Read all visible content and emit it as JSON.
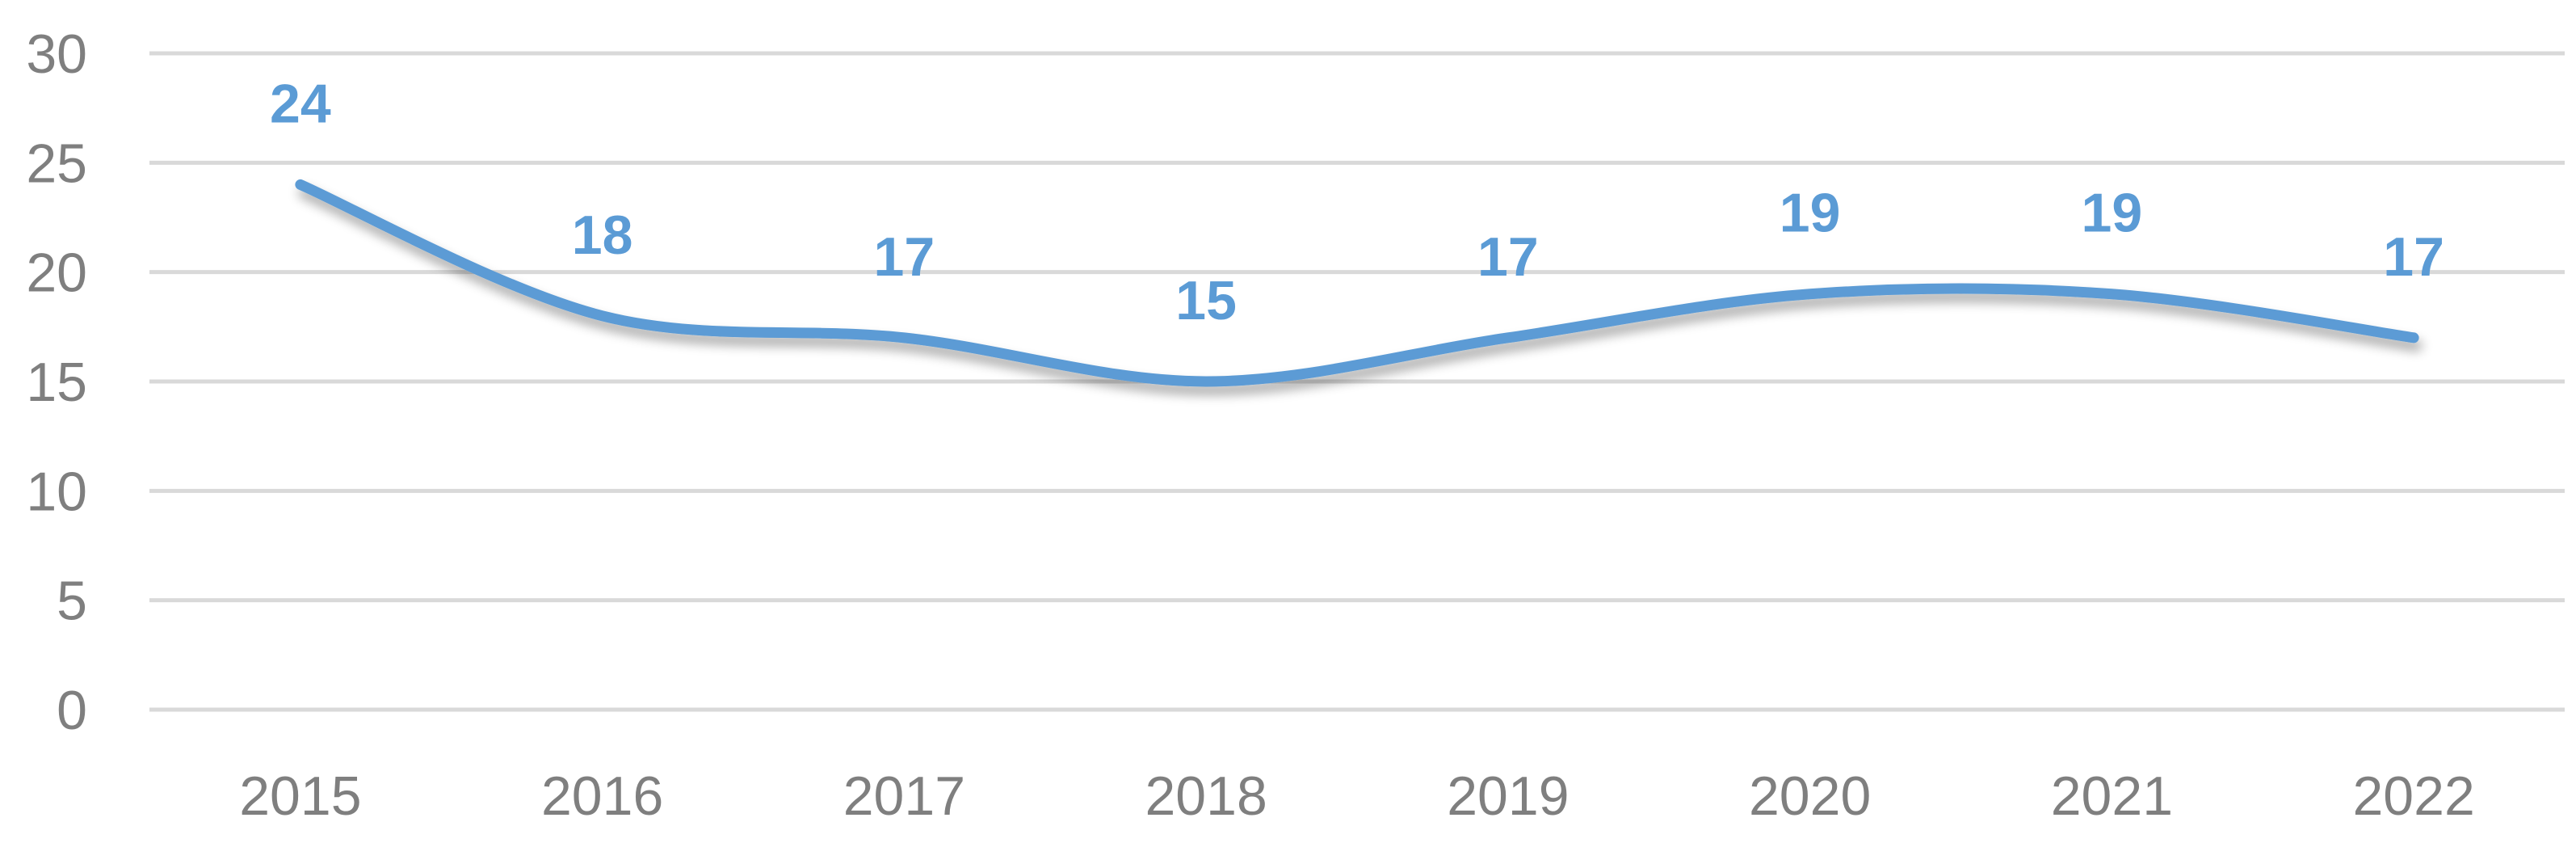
{
  "chart_data": {
    "type": "line",
    "categories": [
      "2015",
      "2016",
      "2017",
      "2018",
      "2019",
      "2020",
      "2021",
      "2022"
    ],
    "series": [
      {
        "values": [
          24,
          18,
          17,
          15,
          17,
          19,
          19,
          17
        ]
      }
    ],
    "data_labels": [
      "24",
      "18",
      "17",
      "15",
      "17",
      "19",
      "19",
      "17"
    ],
    "y_ticks": [
      "0",
      "5",
      "10",
      "15",
      "20",
      "25",
      "30"
    ],
    "ylim": [
      0,
      30
    ],
    "grid": true,
    "smooth": true,
    "legend": "none",
    "title": "",
    "xlabel": "",
    "ylabel": ""
  },
  "colors": {
    "series": "#5b9bd5",
    "label": "#5b9bd5",
    "grid": "#d9d9d9",
    "axis_text": "#7f7f7f"
  }
}
